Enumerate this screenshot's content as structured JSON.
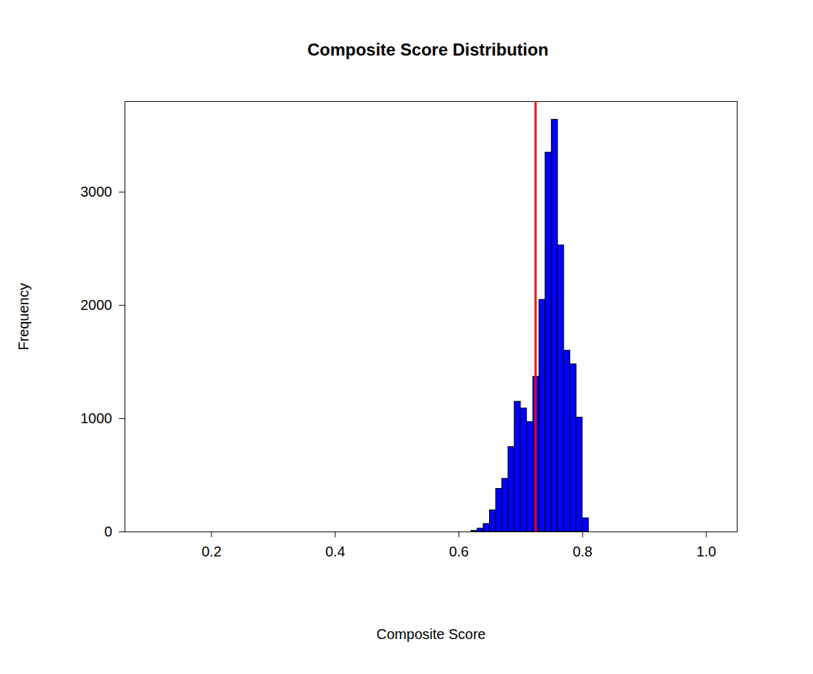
{
  "chart_data": {
    "type": "histogram",
    "title": "Composite Score Distribution",
    "xlabel": "Composite Score",
    "ylabel": "Frequency",
    "bins": [
      0.06,
      0.07,
      0.08,
      0.09,
      0.1,
      0.11,
      0.12,
      0.13,
      0.14,
      0.15,
      0.16,
      0.17,
      0.18,
      0.19,
      0.2,
      0.21,
      0.22,
      0.23,
      0.24,
      0.25,
      0.26,
      0.27,
      0.28,
      0.29,
      0.3,
      0.31,
      0.32,
      0.33,
      0.34,
      0.35,
      0.36,
      0.37,
      0.38,
      0.39,
      0.4,
      0.41,
      0.42,
      0.43,
      0.44,
      0.45,
      0.46,
      0.47,
      0.48,
      0.49,
      0.5,
      0.51,
      0.52,
      0.53,
      0.54,
      0.55,
      0.56,
      0.57,
      0.58,
      0.59,
      0.6,
      0.61,
      0.62,
      0.63,
      0.64,
      0.65,
      0.66,
      0.67,
      0.68,
      0.69,
      0.7,
      0.71,
      0.72,
      0.73,
      0.74,
      0.75,
      0.76,
      0.77,
      0.78,
      0.79,
      0.8,
      0.81,
      0.82,
      0.83,
      0.84,
      0.85,
      0.86,
      0.87,
      0.88,
      0.89,
      0.9,
      0.91,
      0.92,
      0.93,
      0.94,
      0.95,
      0.96,
      0.97,
      0.98,
      0.99,
      1.0,
      1.01,
      1.02,
      1.03,
      1.04,
      1.05
    ],
    "counts": [
      0,
      0,
      0,
      0,
      0,
      0,
      0,
      0,
      0,
      0,
      0,
      0,
      0,
      0,
      0,
      0,
      0,
      0,
      0,
      0,
      0,
      0,
      0,
      0,
      0,
      0,
      0,
      0,
      0,
      0,
      0,
      0,
      0,
      0,
      0,
      0,
      0,
      0,
      0,
      0,
      0,
      0,
      0,
      0,
      0,
      0,
      0,
      0,
      0,
      0,
      0,
      0,
      0,
      0,
      0,
      0,
      10,
      30,
      70,
      190,
      380,
      470,
      750,
      1150,
      1090,
      970,
      1370,
      2050,
      3350,
      3640,
      2530,
      1600,
      1480,
      1010,
      120,
      0,
      0,
      0,
      0,
      0,
      0,
      0,
      0,
      0,
      0,
      0,
      0,
      0,
      0,
      0,
      0,
      0,
      0,
      0,
      0,
      0,
      0,
      0,
      0
    ],
    "color": "#0000ff",
    "reference_line": {
      "value": 0.724,
      "color": "#ff0000"
    },
    "xlim": [
      0.06,
      1.05
    ],
    "xticks": [
      0.2,
      0.4,
      0.6,
      0.8,
      {
        "value": 1.0,
        "label": "1.0"
      }
    ],
    "ylim": [
      0,
      3800
    ],
    "yticks": [
      0,
      1000,
      2000,
      3000
    ],
    "grid": false
  }
}
